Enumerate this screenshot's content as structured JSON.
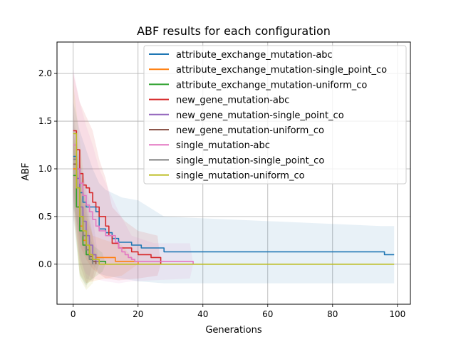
{
  "chart_data": {
    "type": "line",
    "title": "ABF results for each configuration",
    "xlabel": "Generations",
    "ylabel": "ABF",
    "xlim": [
      -5,
      104
    ],
    "ylim": [
      -0.42,
      2.33
    ],
    "xticks": [
      0,
      20,
      40,
      60,
      80,
      100
    ],
    "yticks": [
      0.0,
      0.5,
      1.0,
      1.5,
      2.0
    ],
    "grid": true,
    "legend_position": "top-right",
    "series": [
      {
        "name": "attribute_exchange_mutation-abc",
        "color": "#1f77b4",
        "points": [
          [
            0,
            1.13
          ],
          [
            1,
            1.0
          ],
          [
            2,
            0.75
          ],
          [
            3,
            0.65
          ],
          [
            4,
            0.6
          ],
          [
            6,
            0.6
          ],
          [
            7,
            0.55
          ],
          [
            8,
            0.37
          ],
          [
            10,
            0.33
          ],
          [
            12,
            0.27
          ],
          [
            14,
            0.23
          ],
          [
            17,
            0.23
          ],
          [
            18,
            0.2
          ],
          [
            20,
            0.2
          ],
          [
            21,
            0.17
          ],
          [
            27,
            0.17
          ],
          [
            28,
            0.13
          ],
          [
            95,
            0.13
          ],
          [
            96,
            0.1
          ],
          [
            99,
            0.1
          ]
        ],
        "band_upper": [
          [
            0,
            1.7
          ],
          [
            2,
            1.4
          ],
          [
            4,
            1.2
          ],
          [
            6,
            1.0
          ],
          [
            8,
            0.85
          ],
          [
            10,
            0.78
          ],
          [
            15,
            0.7
          ],
          [
            20,
            0.67
          ],
          [
            28,
            0.5
          ],
          [
            95,
            0.4
          ],
          [
            99,
            0.4
          ]
        ],
        "band_lower": [
          [
            0,
            0.6
          ],
          [
            2,
            0.3
          ],
          [
            4,
            0.1
          ],
          [
            6,
            0.0
          ],
          [
            8,
            -0.1
          ],
          [
            10,
            -0.12
          ],
          [
            15,
            -0.15
          ],
          [
            20,
            -0.18
          ],
          [
            28,
            -0.2
          ],
          [
            99,
            -0.2
          ]
        ]
      },
      {
        "name": "attribute_exchange_mutation-single_point_co",
        "color": "#ff7f0e",
        "points": [
          [
            0,
            1.0
          ],
          [
            1,
            0.6
          ],
          [
            2,
            0.4
          ],
          [
            3,
            0.25
          ],
          [
            4,
            0.15
          ],
          [
            5,
            0.1
          ],
          [
            7,
            0.07
          ],
          [
            12,
            0.07
          ],
          [
            13,
            0.03
          ],
          [
            19,
            0.03
          ],
          [
            20,
            0.0
          ]
        ],
        "band_upper": [
          [
            0,
            1.4
          ],
          [
            2,
            0.9
          ],
          [
            4,
            0.5
          ],
          [
            6,
            0.3
          ],
          [
            10,
            0.25
          ],
          [
            15,
            0.2
          ],
          [
            20,
            0.0
          ]
        ],
        "band_lower": [
          [
            0,
            0.6
          ],
          [
            2,
            -0.1
          ],
          [
            4,
            -0.2
          ],
          [
            6,
            -0.18
          ],
          [
            10,
            -0.15
          ],
          [
            15,
            -0.12
          ],
          [
            20,
            0.0
          ]
        ]
      },
      {
        "name": "attribute_exchange_mutation-uniform_co",
        "color": "#2ca02c",
        "points": [
          [
            0,
            0.93
          ],
          [
            1,
            0.6
          ],
          [
            2,
            0.35
          ],
          [
            3,
            0.2
          ],
          [
            4,
            0.1
          ],
          [
            5,
            0.05
          ],
          [
            6,
            0.03
          ],
          [
            9,
            0.03
          ],
          [
            10,
            0.0
          ]
        ],
        "band_upper": [
          [
            0,
            1.3
          ],
          [
            2,
            0.8
          ],
          [
            4,
            0.4
          ],
          [
            6,
            0.2
          ],
          [
            9,
            0.12
          ],
          [
            10,
            0.0
          ]
        ],
        "band_lower": [
          [
            0,
            0.5
          ],
          [
            2,
            -0.12
          ],
          [
            4,
            -0.22
          ],
          [
            6,
            -0.15
          ],
          [
            9,
            -0.08
          ],
          [
            10,
            0.0
          ]
        ]
      },
      {
        "name": "new_gene_mutation-abc",
        "color": "#d62728",
        "points": [
          [
            0,
            1.4
          ],
          [
            1,
            1.2
          ],
          [
            2,
            0.95
          ],
          [
            3,
            0.83
          ],
          [
            4,
            0.8
          ],
          [
            5,
            0.75
          ],
          [
            6,
            0.65
          ],
          [
            7,
            0.6
          ],
          [
            8,
            0.5
          ],
          [
            10,
            0.4
          ],
          [
            11,
            0.3
          ],
          [
            12,
            0.22
          ],
          [
            14,
            0.17
          ],
          [
            18,
            0.13
          ],
          [
            20,
            0.1
          ],
          [
            23,
            0.1
          ],
          [
            24,
            0.07
          ],
          [
            26,
            0.07
          ],
          [
            27,
            0.0
          ]
        ],
        "band_upper": [
          [
            0,
            2.0
          ],
          [
            2,
            1.7
          ],
          [
            4,
            1.55
          ],
          [
            6,
            1.4
          ],
          [
            8,
            1.1
          ],
          [
            10,
            0.9
          ],
          [
            12,
            0.6
          ],
          [
            16,
            0.45
          ],
          [
            20,
            0.35
          ],
          [
            26,
            0.3
          ],
          [
            27,
            0.0
          ]
        ],
        "band_lower": [
          [
            0,
            0.8
          ],
          [
            2,
            0.2
          ],
          [
            4,
            0.05
          ],
          [
            6,
            -0.05
          ],
          [
            8,
            -0.1
          ],
          [
            10,
            -0.15
          ],
          [
            14,
            -0.17
          ],
          [
            20,
            -0.15
          ],
          [
            26,
            -0.12
          ],
          [
            27,
            0.0
          ]
        ]
      },
      {
        "name": "new_gene_mutation-single_point_co",
        "color": "#9467bd",
        "points": [
          [
            0,
            1.1
          ],
          [
            1,
            0.9
          ],
          [
            2,
            0.6
          ],
          [
            3,
            0.45
          ],
          [
            4,
            0.3
          ],
          [
            5,
            0.2
          ],
          [
            6,
            0.1
          ],
          [
            7,
            0.03
          ],
          [
            8,
            0.0
          ]
        ],
        "band_upper": [
          [
            0,
            1.5
          ],
          [
            2,
            1.1
          ],
          [
            4,
            0.8
          ],
          [
            6,
            0.5
          ],
          [
            8,
            0.0
          ]
        ],
        "band_lower": [
          [
            0,
            0.7
          ],
          [
            2,
            0.1
          ],
          [
            4,
            -0.15
          ],
          [
            6,
            -0.18
          ],
          [
            8,
            0.0
          ]
        ]
      },
      {
        "name": "new_gene_mutation-uniform_co",
        "color": "#8c564b",
        "points": [
          [
            0,
            1.05
          ],
          [
            1,
            0.8
          ],
          [
            2,
            0.5
          ],
          [
            3,
            0.3
          ],
          [
            4,
            0.15
          ],
          [
            5,
            0.08
          ],
          [
            6,
            0.03
          ],
          [
            7,
            0.0
          ]
        ],
        "band_upper": [
          [
            0,
            1.4
          ],
          [
            2,
            1.0
          ],
          [
            4,
            0.6
          ],
          [
            6,
            0.3
          ],
          [
            7,
            0.0
          ]
        ],
        "band_lower": [
          [
            0,
            0.7
          ],
          [
            2,
            0.0
          ],
          [
            4,
            -0.2
          ],
          [
            6,
            -0.15
          ],
          [
            7,
            0.0
          ]
        ]
      },
      {
        "name": "single_mutation-abc",
        "color": "#e377c2",
        "points": [
          [
            0,
            1.25
          ],
          [
            1,
            1.0
          ],
          [
            2,
            0.85
          ],
          [
            3,
            0.72
          ],
          [
            4,
            0.62
          ],
          [
            5,
            0.55
          ],
          [
            6,
            0.47
          ],
          [
            7,
            0.4
          ],
          [
            8,
            0.35
          ],
          [
            10,
            0.3
          ],
          [
            12,
            0.3
          ],
          [
            13,
            0.23
          ],
          [
            14,
            0.17
          ],
          [
            15,
            0.13
          ],
          [
            16,
            0.1
          ],
          [
            17,
            0.07
          ],
          [
            18,
            0.05
          ],
          [
            19,
            0.03
          ],
          [
            36,
            0.03
          ],
          [
            37,
            0.0
          ]
        ],
        "band_upper": [
          [
            0,
            2.05
          ],
          [
            2,
            1.7
          ],
          [
            4,
            1.45
          ],
          [
            6,
            1.25
          ],
          [
            8,
            1.0
          ],
          [
            10,
            0.85
          ],
          [
            14,
            0.55
          ],
          [
            18,
            0.3
          ],
          [
            25,
            0.22
          ],
          [
            36,
            0.22
          ],
          [
            37,
            0.0
          ]
        ],
        "band_lower": [
          [
            0,
            0.5
          ],
          [
            2,
            0.05
          ],
          [
            4,
            -0.1
          ],
          [
            6,
            -0.15
          ],
          [
            10,
            -0.18
          ],
          [
            14,
            -0.2
          ],
          [
            18,
            -0.18
          ],
          [
            36,
            -0.15
          ],
          [
            37,
            0.0
          ]
        ]
      },
      {
        "name": "single_mutation-single_point_co",
        "color": "#7f7f7f",
        "points": [
          [
            0,
            1.1
          ],
          [
            1,
            0.8
          ],
          [
            2,
            0.5
          ],
          [
            3,
            0.3
          ],
          [
            4,
            0.15
          ],
          [
            5,
            0.05
          ],
          [
            6,
            0.0
          ]
        ],
        "band_upper": [
          [
            0,
            1.6
          ],
          [
            2,
            1.1
          ],
          [
            4,
            0.6
          ],
          [
            6,
            0.0
          ]
        ],
        "band_lower": [
          [
            0,
            0.6
          ],
          [
            2,
            -0.1
          ],
          [
            4,
            -0.25
          ],
          [
            6,
            0.0
          ]
        ]
      },
      {
        "name": "single_mutation-uniform_co",
        "color": "#bcbd22",
        "points": [
          [
            0,
            1.37
          ],
          [
            1,
            0.8
          ],
          [
            2,
            0.5
          ],
          [
            3,
            0.35
          ],
          [
            4,
            0.2
          ],
          [
            5,
            0.1
          ],
          [
            6,
            0.05
          ],
          [
            8,
            0.0
          ],
          [
            99,
            0.0
          ]
        ],
        "band_upper": [
          [
            0,
            1.9
          ],
          [
            2,
            1.3
          ],
          [
            4,
            0.7
          ],
          [
            6,
            0.3
          ],
          [
            8,
            0.0
          ]
        ],
        "band_lower": [
          [
            0,
            0.8
          ],
          [
            2,
            -0.15
          ],
          [
            4,
            -0.27
          ],
          [
            6,
            -0.2
          ],
          [
            8,
            0.0
          ]
        ]
      }
    ]
  }
}
